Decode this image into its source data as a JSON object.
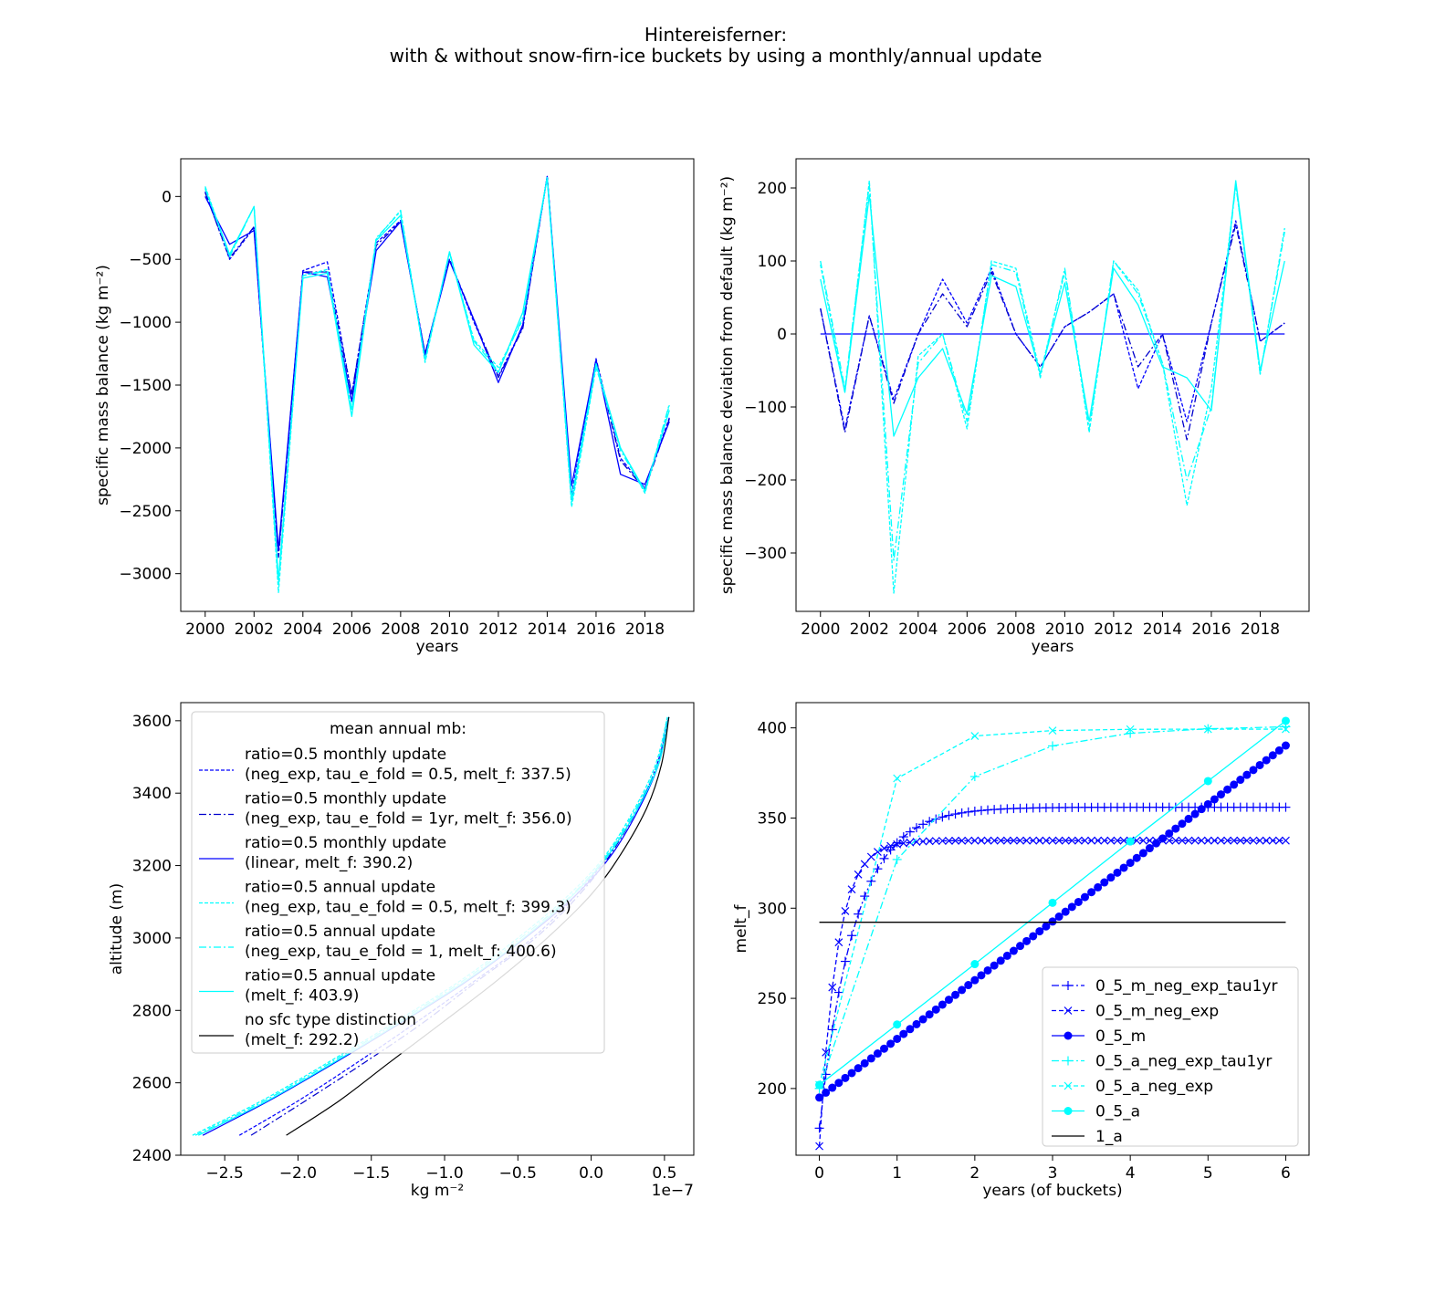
{
  "figure": {
    "title_line1": "Hintereisferner:",
    "title_line2": "with & without snow-firn-ice buckets by using a monthly/annual update"
  },
  "colors": {
    "blue": "#0000ff",
    "darkblue": "#0000cd",
    "cyan": "#00ffff",
    "black": "#000000"
  },
  "chart_data": [
    {
      "id": "tl",
      "type": "line",
      "xlabel": "years",
      "ylabel": "specific mass balance (kg m⁻²)",
      "xlim": [
        1999,
        2020
      ],
      "ylim": [
        -3300,
        300
      ],
      "xticks": [
        2000,
        2002,
        2004,
        2006,
        2008,
        2010,
        2012,
        2014,
        2016,
        2018
      ],
      "xticklabels": [
        "2000",
        "2002",
        "2004",
        "2006",
        "2008",
        "2010",
        "2012",
        "2014",
        "2016",
        "2018"
      ],
      "yticks": [
        0,
        -500,
        -1000,
        -1500,
        -2000,
        -2500,
        -3000
      ],
      "yticklabels": [
        "0",
        "−500",
        "−1000",
        "−1500",
        "−2000",
        "−2500",
        "−3000"
      ],
      "x": [
        2000,
        2001,
        2002,
        2003,
        2004,
        2005,
        2006,
        2007,
        2008,
        2009,
        2010,
        2011,
        2012,
        2013,
        2014,
        2015,
        2016,
        2017,
        2018,
        2019
      ],
      "series": [
        {
          "color": "blue",
          "dash": "4,2",
          "values": [
            40,
            -500,
            -250,
            -2850,
            -590,
            -520,
            -1580,
            -370,
            -190,
            -1250,
            -500,
            -1000,
            -1430,
            -1040,
            160,
            -2370,
            -1290,
            -2080,
            -2320,
            -1760
          ]
        },
        {
          "color": "darkblue",
          "dash": "8,3,2,3",
          "values": [
            30,
            -490,
            -240,
            -2870,
            -600,
            -600,
            -1570,
            -390,
            -200,
            -1250,
            -500,
            -980,
            -1440,
            -1050,
            160,
            -2420,
            -1300,
            -2100,
            -2330,
            -1770
          ]
        },
        {
          "color": "blue",
          "dash": "",
          "values": [
            0,
            -380,
            -270,
            -2810,
            -600,
            -640,
            -1630,
            -430,
            -200,
            -1260,
            -510,
            -980,
            -1480,
            -1020,
            160,
            -2300,
            -1300,
            -2210,
            -2290,
            -1790
          ]
        },
        {
          "color": "cyan",
          "dash": "4,2",
          "values": [
            80,
            -470,
            -80,
            -3150,
            -630,
            -580,
            -1700,
            -340,
            -110,
            -1320,
            -440,
            -1140,
            -1360,
            -980,
            150,
            -2470,
            -1360,
            -2000,
            -2360,
            -1660
          ]
        },
        {
          "color": "cyan",
          "dash": "8,3,2,3",
          "values": [
            70,
            -480,
            -80,
            -3100,
            -630,
            -590,
            -1700,
            -330,
            -120,
            -1300,
            -450,
            -1150,
            -1390,
            -960,
            150,
            -2440,
            -1350,
            -2020,
            -2350,
            -1650
          ]
        },
        {
          "color": "cyan",
          "dash": "",
          "values": [
            60,
            -460,
            -80,
            -3050,
            -650,
            -610,
            -1750,
            -350,
            -150,
            -1300,
            -440,
            -1180,
            -1400,
            -920,
            150,
            -2400,
            -1330,
            -2000,
            -2340,
            -1700
          ]
        }
      ]
    },
    {
      "id": "tr",
      "type": "line",
      "xlabel": "years",
      "ylabel": "specific mass balance deviation from default (kg m⁻²)",
      "xlim": [
        1999,
        2020
      ],
      "ylim": [
        -380,
        240
      ],
      "xticks": [
        2000,
        2002,
        2004,
        2006,
        2008,
        2010,
        2012,
        2014,
        2016,
        2018
      ],
      "xticklabels": [
        "2000",
        "2002",
        "2004",
        "2006",
        "2008",
        "2010",
        "2012",
        "2014",
        "2016",
        "2018"
      ],
      "yticks": [
        200,
        100,
        0,
        -100,
        -200,
        -300
      ],
      "yticklabels": [
        "200",
        "100",
        "0",
        "−100",
        "−200",
        "−300"
      ],
      "x": [
        2000,
        2001,
        2002,
        2003,
        2004,
        2005,
        2006,
        2007,
        2008,
        2009,
        2010,
        2011,
        2012,
        2013,
        2014,
        2015,
        2016,
        2017,
        2018,
        2019
      ],
      "series": [
        {
          "color": "blue",
          "dash": "4,2",
          "values": [
            35,
            -130,
            25,
            -90,
            0,
            75,
            15,
            90,
            0,
            -45,
            10,
            30,
            55,
            -75,
            0,
            -120,
            15,
            155,
            -10,
            15
          ]
        },
        {
          "color": "darkblue",
          "dash": "8,3,2,3",
          "values": [
            35,
            -135,
            25,
            -95,
            0,
            55,
            10,
            85,
            0,
            -45,
            10,
            30,
            55,
            -45,
            0,
            -145,
            15,
            150,
            -10,
            15
          ]
        },
        {
          "color": "blue",
          "dash": "",
          "values": [
            0,
            0,
            0,
            0,
            0,
            0,
            0,
            0,
            0,
            0,
            0,
            0,
            0,
            0,
            0,
            0,
            0,
            0,
            0,
            0
          ]
        },
        {
          "color": "cyan",
          "dash": "4,2",
          "values": [
            95,
            -80,
            210,
            -355,
            -30,
            0,
            -130,
            100,
            90,
            -55,
            85,
            -135,
            100,
            60,
            -40,
            -235,
            -75,
            205,
            -55,
            145
          ]
        },
        {
          "color": "cyan",
          "dash": "8,3,2,3",
          "values": [
            100,
            -75,
            205,
            -310,
            -40,
            0,
            -120,
            95,
            85,
            -60,
            90,
            -130,
            100,
            55,
            -40,
            -200,
            -100,
            205,
            -55,
            140
          ]
        },
        {
          "color": "cyan",
          "dash": "",
          "values": [
            75,
            -80,
            190,
            -140,
            -60,
            -20,
            -110,
            80,
            65,
            -55,
            70,
            -120,
            90,
            40,
            -45,
            -60,
            -105,
            210,
            -50,
            100
          ]
        }
      ]
    },
    {
      "id": "bl",
      "type": "line",
      "xlabel": "kg m⁻²",
      "ylabel": "altitude (m)",
      "offset_label": "1e−7",
      "xlim": [
        -2.8,
        0.7
      ],
      "ylim": [
        2400,
        3650
      ],
      "xticks": [
        -2.5,
        -2.0,
        -1.5,
        -1.0,
        -0.5,
        0.0,
        0.5
      ],
      "xticklabels": [
        "−2.5",
        "−2.0",
        "−1.5",
        "−1.0",
        "−0.5",
        "0.0",
        "0.5"
      ],
      "yticks": [
        2400,
        2600,
        2800,
        3000,
        3200,
        3400,
        3600
      ],
      "yticklabels": [
        "2400",
        "2600",
        "2800",
        "3000",
        "3200",
        "3400",
        "3600"
      ],
      "legend": {
        "title": "mean annual mb:",
        "entries": [
          {
            "line1": "ratio=0.5 monthly update",
            "line2": "(neg_exp, tau_e_fold = 0.5,  melt_f: 337.5)"
          },
          {
            "line1": "ratio=0.5 monthly update",
            "line2": "(neg_exp, tau_e_fold = 1yr,  melt_f: 356.0)"
          },
          {
            "line1": "ratio=0.5 monthly update",
            "line2": "(linear, melt_f: 390.2)"
          },
          {
            "line1": "ratio=0.5 annual update",
            "line2": "(neg_exp, tau_e_fold = 0.5,  melt_f: 399.3)"
          },
          {
            "line1": "ratio=0.5 annual update",
            "line2": "(neg_exp, tau_e_fold = 1,  melt_f: 400.6)"
          },
          {
            "line1": "ratio=0.5 annual update",
            "line2": "(melt_f: 403.9)"
          },
          {
            "line1": "no sfc type distinction",
            "line2": "(melt_f: 292.2)"
          }
        ]
      },
      "series": [
        {
          "color": "blue",
          "dash": "4,2",
          "points": [
            [
              -2.4,
              2455
            ],
            [
              -2.0,
              2550
            ],
            [
              -1.6,
              2655
            ],
            [
              -1.2,
              2765
            ],
            [
              -0.8,
              2880
            ],
            [
              -0.4,
              3000
            ],
            [
              -0.1,
              3120
            ],
            [
              0.12,
              3230
            ],
            [
              0.32,
              3360
            ],
            [
              0.45,
              3480
            ],
            [
              0.53,
              3610
            ]
          ]
        },
        {
          "color": "darkblue",
          "dash": "8,3,2,3",
          "points": [
            [
              -2.32,
              2455
            ],
            [
              -1.95,
              2550
            ],
            [
              -1.55,
              2655
            ],
            [
              -1.15,
              2765
            ],
            [
              -0.78,
              2880
            ],
            [
              -0.38,
              3000
            ],
            [
              -0.08,
              3120
            ],
            [
              0.13,
              3230
            ],
            [
              0.32,
              3360
            ],
            [
              0.45,
              3480
            ],
            [
              0.53,
              3610
            ]
          ]
        },
        {
          "color": "blue",
          "dash": "",
          "points": [
            [
              -2.65,
              2455
            ],
            [
              -2.2,
              2550
            ],
            [
              -1.75,
              2655
            ],
            [
              -1.3,
              2765
            ],
            [
              -0.85,
              2880
            ],
            [
              -0.45,
              3000
            ],
            [
              -0.1,
              3120
            ],
            [
              0.14,
              3230
            ],
            [
              0.33,
              3360
            ],
            [
              0.46,
              3480
            ],
            [
              0.53,
              3610
            ]
          ]
        },
        {
          "color": "cyan",
          "dash": "4,2",
          "points": [
            [
              -2.72,
              2455
            ],
            [
              -2.25,
              2550
            ],
            [
              -1.8,
              2655
            ],
            [
              -1.35,
              2765
            ],
            [
              -0.9,
              2880
            ],
            [
              -0.5,
              3000
            ],
            [
              -0.15,
              3120
            ],
            [
              0.1,
              3230
            ],
            [
              0.3,
              3360
            ],
            [
              0.44,
              3480
            ],
            [
              0.52,
              3610
            ]
          ]
        },
        {
          "color": "cyan",
          "dash": "8,3,2,3",
          "points": [
            [
              -2.7,
              2455
            ],
            [
              -2.23,
              2550
            ],
            [
              -1.78,
              2655
            ],
            [
              -1.33,
              2765
            ],
            [
              -0.88,
              2880
            ],
            [
              -0.48,
              3000
            ],
            [
              -0.13,
              3120
            ],
            [
              0.11,
              3230
            ],
            [
              0.31,
              3360
            ],
            [
              0.45,
              3480
            ],
            [
              0.52,
              3610
            ]
          ]
        },
        {
          "color": "cyan",
          "dash": "",
          "points": [
            [
              -2.68,
              2455
            ],
            [
              -2.21,
              2550
            ],
            [
              -1.76,
              2655
            ],
            [
              -1.31,
              2765
            ],
            [
              -0.86,
              2880
            ],
            [
              -0.46,
              3000
            ],
            [
              -0.12,
              3120
            ],
            [
              0.12,
              3230
            ],
            [
              0.32,
              3360
            ],
            [
              0.46,
              3480
            ],
            [
              0.53,
              3610
            ]
          ]
        },
        {
          "color": "black",
          "dash": "",
          "points": [
            [
              -2.08,
              2455
            ],
            [
              -1.72,
              2550
            ],
            [
              -1.38,
              2655
            ],
            [
              -1.02,
              2765
            ],
            [
              -0.65,
              2880
            ],
            [
              -0.3,
              3000
            ],
            [
              0.0,
              3120
            ],
            [
              0.2,
              3230
            ],
            [
              0.38,
              3360
            ],
            [
              0.48,
              3480
            ],
            [
              0.53,
              3610
            ]
          ]
        }
      ]
    },
    {
      "id": "br",
      "type": "line",
      "xlabel": "years (of buckets)",
      "ylabel": "melt_f",
      "xlim": [
        -0.3,
        6.3
      ],
      "ylim": [
        163,
        414
      ],
      "xticks": [
        0,
        1,
        2,
        3,
        4,
        5,
        6
      ],
      "xticklabels": [
        "0",
        "1",
        "2",
        "3",
        "4",
        "5",
        "6"
      ],
      "yticks": [
        200,
        250,
        300,
        350,
        400
      ],
      "yticklabels": [
        "200",
        "250",
        "300",
        "350",
        "400"
      ],
      "legend": {
        "entries": [
          "0_5_m_neg_exp_tau1yr",
          "0_5_m_neg_exp",
          "0_5_m",
          "0_5_a_neg_exp_tau1yr",
          "0_5_a_neg_exp",
          "0_5_a",
          "1_a"
        ]
      },
      "series": [
        {
          "label": "0_5_m_neg_exp_tau1yr",
          "color": "blue",
          "dash": "8,3,2,3",
          "marker": "plus",
          "model": "exp",
          "y0": 178,
          "yinf": 356.0,
          "tau": 1.0,
          "step": 0.0833333,
          "xmax": 6
        },
        {
          "label": "0_5_m_neg_exp",
          "color": "blue",
          "dash": "5,3",
          "marker": "x",
          "model": "exp",
          "y0": 168,
          "yinf": 337.5,
          "tau": 0.5,
          "step": 0.0833333,
          "xmax": 6
        },
        {
          "label": "0_5_m",
          "color": "blue",
          "dash": "",
          "marker": "dot",
          "model": "linear",
          "y0": 195,
          "y1": 390.2,
          "step": 0.0833333,
          "xmax": 6
        },
        {
          "label": "0_5_a_neg_exp_tau1yr",
          "color": "cyan",
          "dash": "8,3,2,3",
          "marker": "plus",
          "model": "points",
          "points": [
            [
              0,
              200
            ],
            [
              1,
              327
            ],
            [
              2,
              373
            ],
            [
              3,
              390
            ],
            [
              4,
              397
            ],
            [
              5,
              399.5
            ],
            [
              6,
              400.6
            ]
          ]
        },
        {
          "label": "0_5_a_neg_exp",
          "color": "cyan",
          "dash": "5,3",
          "marker": "x",
          "model": "points",
          "points": [
            [
              0,
              202
            ],
            [
              1,
              372
            ],
            [
              2,
              395.5
            ],
            [
              3,
              398.5
            ],
            [
              4,
              399.2
            ],
            [
              5,
              399.3
            ],
            [
              6,
              399.3
            ]
          ]
        },
        {
          "label": "0_5_a",
          "color": "cyan",
          "dash": "",
          "marker": "dot",
          "model": "points",
          "points": [
            [
              0,
              202
            ],
            [
              1,
              235.5
            ],
            [
              2,
              269
            ],
            [
              3,
              303
            ],
            [
              4,
              337
            ],
            [
              5,
              370.5
            ],
            [
              6,
              403.9
            ]
          ]
        },
        {
          "label": "1_a",
          "color": "black",
          "dash": "",
          "marker": "none",
          "model": "points",
          "points": [
            [
              0,
              292.2
            ],
            [
              6,
              292.2
            ]
          ]
        }
      ]
    }
  ]
}
